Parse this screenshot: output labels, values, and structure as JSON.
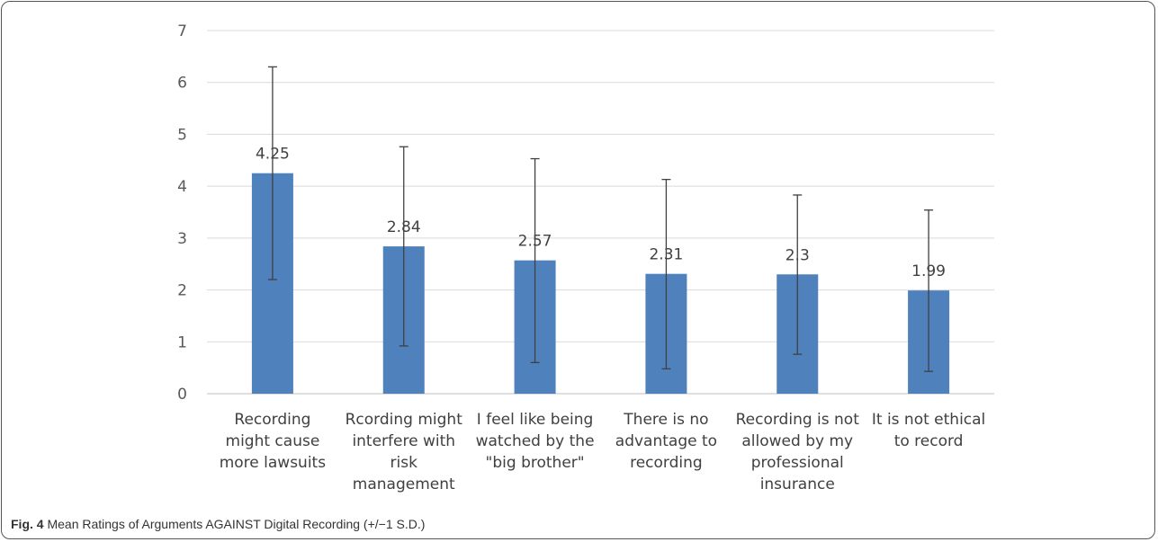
{
  "caption": {
    "fig_label": "Fig. 4",
    "text": "Mean Ratings of Arguments AGAINST Digital Recording (+/−1 S.D.)"
  },
  "chart_data": {
    "type": "bar",
    "categories": [
      [
        "Recording",
        "might cause",
        "more lawsuits"
      ],
      [
        "Rcording might",
        "interfere with",
        "risk",
        "management"
      ],
      [
        "I feel like being",
        "watched by the",
        "\"big brother\""
      ],
      [
        "There is no",
        "advantage to",
        "recording"
      ],
      [
        "Recording is not",
        "allowed by my",
        "professional",
        "insurance"
      ],
      [
        "It is not ethical",
        "to record"
      ]
    ],
    "values": [
      4.25,
      2.84,
      2.57,
      2.31,
      2.3,
      1.99
    ],
    "value_labels": [
      "4.25",
      "2.84",
      "2.57",
      "2.31",
      "2.3",
      "1.99"
    ],
    "error_low": [
      2.2,
      0.92,
      0.6,
      0.48,
      0.76,
      0.43
    ],
    "error_high": [
      6.3,
      4.76,
      4.53,
      4.13,
      3.83,
      3.54
    ],
    "ylim": [
      0,
      7
    ],
    "yticks": [
      "0",
      "1",
      "2",
      "3",
      "4",
      "5",
      "6",
      "7"
    ],
    "grid": true,
    "bar_color": "#4F81BD",
    "grid_color": "#D9D9D9",
    "error_color": "#404040"
  }
}
